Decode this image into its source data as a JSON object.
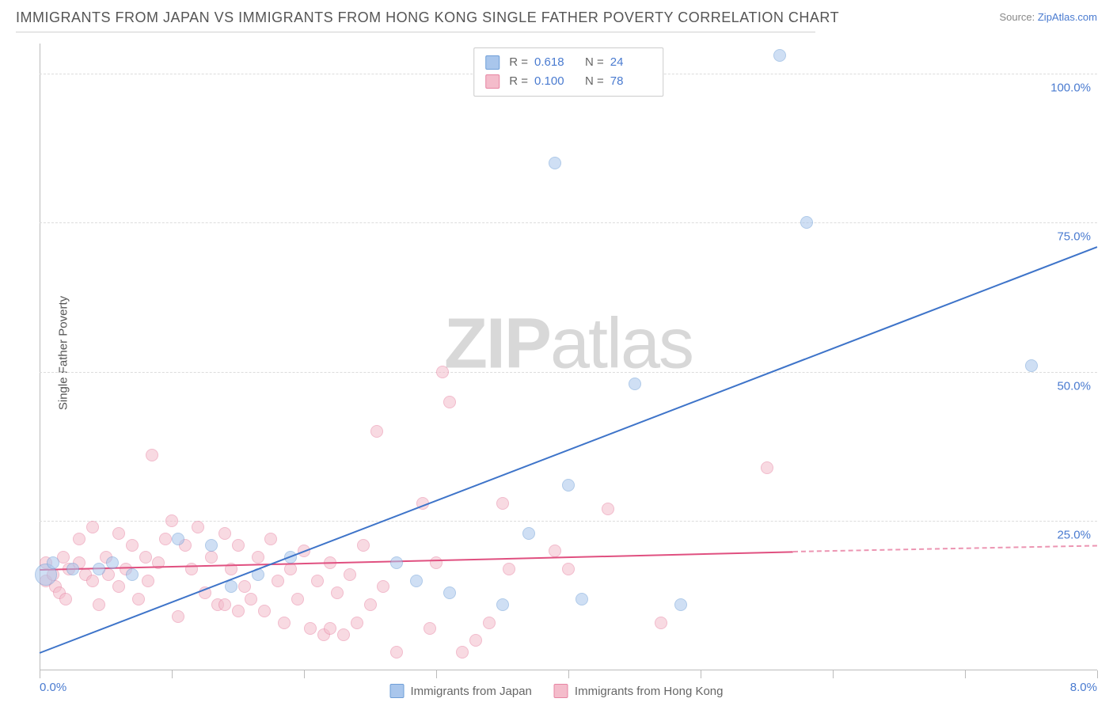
{
  "title": "IMMIGRANTS FROM JAPAN VS IMMIGRANTS FROM HONG KONG SINGLE FATHER POVERTY CORRELATION CHART",
  "source_prefix": "Source: ",
  "source_name": "ZipAtlas.com",
  "y_axis_label": "Single Father Poverty",
  "watermark_a": "ZIP",
  "watermark_b": "atlas",
  "chart": {
    "type": "scatter",
    "xlim": [
      0,
      8
    ],
    "ylim": [
      0,
      105
    ],
    "x_ticks": [
      0,
      1,
      2,
      3,
      4,
      5,
      6,
      7,
      8
    ],
    "x_tick_labels": {
      "0": "0.0%",
      "8": "8.0%"
    },
    "y_ticks": [
      25,
      50,
      75,
      100
    ],
    "y_tick_labels": {
      "25": "25.0%",
      "50": "50.0%",
      "75": "75.0%",
      "100": "100.0%"
    },
    "grid_color": "#dcdcdc",
    "axis_color": "#bbbbbb",
    "background_color": "#ffffff",
    "point_radius": 8,
    "point_opacity": 0.55,
    "series": [
      {
        "name": "Immigrants from Japan",
        "color_fill": "#a9c6ec",
        "color_stroke": "#6f9fd8",
        "r_label": "R =",
        "r_value": "0.618",
        "n_label": "N =",
        "n_value": "24",
        "regression": {
          "x1": 0,
          "y1": 3,
          "x2": 8,
          "y2": 71,
          "color": "#3e74c9",
          "width": 2
        },
        "points": [
          {
            "x": 0.05,
            "y": 16,
            "r": 14
          },
          {
            "x": 0.1,
            "y": 18
          },
          {
            "x": 0.25,
            "y": 17
          },
          {
            "x": 0.45,
            "y": 17
          },
          {
            "x": 0.55,
            "y": 18
          },
          {
            "x": 0.7,
            "y": 16
          },
          {
            "x": 1.05,
            "y": 22
          },
          {
            "x": 1.3,
            "y": 21
          },
          {
            "x": 1.45,
            "y": 14
          },
          {
            "x": 1.65,
            "y": 16
          },
          {
            "x": 1.9,
            "y": 19
          },
          {
            "x": 2.7,
            "y": 18
          },
          {
            "x": 2.85,
            "y": 15
          },
          {
            "x": 3.1,
            "y": 13
          },
          {
            "x": 3.5,
            "y": 11
          },
          {
            "x": 3.7,
            "y": 23
          },
          {
            "x": 4.0,
            "y": 31
          },
          {
            "x": 4.1,
            "y": 12
          },
          {
            "x": 4.5,
            "y": 48
          },
          {
            "x": 4.85,
            "y": 11
          },
          {
            "x": 3.9,
            "y": 85
          },
          {
            "x": 5.6,
            "y": 103
          },
          {
            "x": 5.8,
            "y": 75
          },
          {
            "x": 7.5,
            "y": 51
          }
        ]
      },
      {
        "name": "Immigrants from Hong Kong",
        "color_fill": "#f4bccb",
        "color_stroke": "#e785a3",
        "r_label": "R =",
        "r_value": "0.100",
        "n_label": "N =",
        "n_value": "78",
        "regression": {
          "x1": 0,
          "y1": 17,
          "x2": 5.7,
          "y2": 20,
          "color": "#e05080",
          "width": 2,
          "dash_extend": {
            "x2": 8,
            "y2": 21
          }
        },
        "points": [
          {
            "x": 0.05,
            "y": 15
          },
          {
            "x": 0.05,
            "y": 18
          },
          {
            "x": 0.1,
            "y": 16
          },
          {
            "x": 0.12,
            "y": 14
          },
          {
            "x": 0.15,
            "y": 13
          },
          {
            "x": 0.18,
            "y": 19
          },
          {
            "x": 0.2,
            "y": 12
          },
          {
            "x": 0.22,
            "y": 17
          },
          {
            "x": 0.3,
            "y": 18
          },
          {
            "x": 0.3,
            "y": 22
          },
          {
            "x": 0.35,
            "y": 16
          },
          {
            "x": 0.4,
            "y": 15
          },
          {
            "x": 0.4,
            "y": 24
          },
          {
            "x": 0.45,
            "y": 11
          },
          {
            "x": 0.5,
            "y": 19
          },
          {
            "x": 0.52,
            "y": 16
          },
          {
            "x": 0.6,
            "y": 23
          },
          {
            "x": 0.6,
            "y": 14
          },
          {
            "x": 0.65,
            "y": 17
          },
          {
            "x": 0.7,
            "y": 21
          },
          {
            "x": 0.75,
            "y": 12
          },
          {
            "x": 0.8,
            "y": 19
          },
          {
            "x": 0.82,
            "y": 15
          },
          {
            "x": 0.85,
            "y": 36
          },
          {
            "x": 0.9,
            "y": 18
          },
          {
            "x": 0.95,
            "y": 22
          },
          {
            "x": 1.0,
            "y": 25
          },
          {
            "x": 1.05,
            "y": 9
          },
          {
            "x": 1.1,
            "y": 21
          },
          {
            "x": 1.15,
            "y": 17
          },
          {
            "x": 1.2,
            "y": 24
          },
          {
            "x": 1.25,
            "y": 13
          },
          {
            "x": 1.3,
            "y": 19
          },
          {
            "x": 1.35,
            "y": 11
          },
          {
            "x": 1.4,
            "y": 11
          },
          {
            "x": 1.4,
            "y": 23
          },
          {
            "x": 1.45,
            "y": 17
          },
          {
            "x": 1.5,
            "y": 21
          },
          {
            "x": 1.5,
            "y": 10
          },
          {
            "x": 1.55,
            "y": 14
          },
          {
            "x": 1.6,
            "y": 12
          },
          {
            "x": 1.65,
            "y": 19
          },
          {
            "x": 1.7,
            "y": 10
          },
          {
            "x": 1.75,
            "y": 22
          },
          {
            "x": 1.8,
            "y": 15
          },
          {
            "x": 1.85,
            "y": 8
          },
          {
            "x": 1.9,
            "y": 17
          },
          {
            "x": 1.95,
            "y": 12
          },
          {
            "x": 2.0,
            "y": 20
          },
          {
            "x": 2.05,
            "y": 7
          },
          {
            "x": 2.1,
            "y": 15
          },
          {
            "x": 2.15,
            "y": 6
          },
          {
            "x": 2.2,
            "y": 7
          },
          {
            "x": 2.2,
            "y": 18
          },
          {
            "x": 2.25,
            "y": 13
          },
          {
            "x": 2.3,
            "y": 6
          },
          {
            "x": 2.35,
            "y": 16
          },
          {
            "x": 2.4,
            "y": 8
          },
          {
            "x": 2.45,
            "y": 21
          },
          {
            "x": 2.5,
            "y": 11
          },
          {
            "x": 2.55,
            "y": 40
          },
          {
            "x": 2.6,
            "y": 14
          },
          {
            "x": 2.7,
            "y": 3
          },
          {
            "x": 2.9,
            "y": 28
          },
          {
            "x": 2.95,
            "y": 7
          },
          {
            "x": 3.0,
            "y": 18
          },
          {
            "x": 3.05,
            "y": 50
          },
          {
            "x": 3.1,
            "y": 45
          },
          {
            "x": 3.3,
            "y": 5
          },
          {
            "x": 3.4,
            "y": 8
          },
          {
            "x": 3.5,
            "y": 28
          },
          {
            "x": 3.55,
            "y": 17
          },
          {
            "x": 3.9,
            "y": 20
          },
          {
            "x": 4.0,
            "y": 17
          },
          {
            "x": 4.3,
            "y": 27
          },
          {
            "x": 4.7,
            "y": 8
          },
          {
            "x": 5.5,
            "y": 34
          },
          {
            "x": 3.2,
            "y": 3
          }
        ]
      }
    ]
  },
  "legend_bottom": [
    {
      "label": "Immigrants from Japan",
      "fill": "#a9c6ec",
      "stroke": "#6f9fd8"
    },
    {
      "label": "Immigrants from Hong Kong",
      "fill": "#f4bccb",
      "stroke": "#e785a3"
    }
  ]
}
